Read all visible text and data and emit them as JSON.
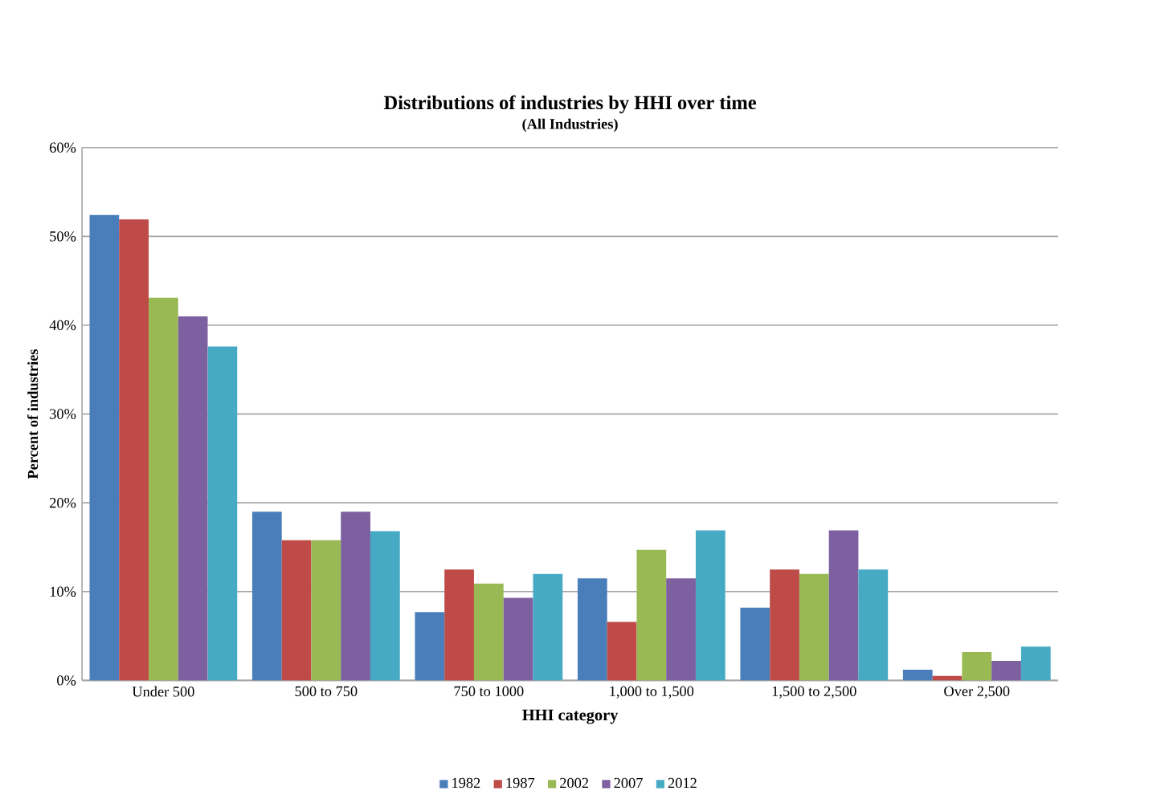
{
  "chart_data": {
    "type": "bar",
    "title": "Distributions of industries by HHI over time",
    "subtitle": "(All Industries)",
    "xlabel": "HHI category",
    "ylabel": "Percent of industries",
    "categories": [
      "Under 500",
      "500 to 750",
      "750 to 1000",
      "1,000 to 1,500",
      "1,500 to 2,500",
      "Over 2,500"
    ],
    "series": [
      {
        "name": "1982",
        "color": "#4a7ebb",
        "values": [
          52.4,
          19.0,
          7.7,
          11.5,
          8.2,
          1.2
        ]
      },
      {
        "name": "1987",
        "color": "#be4b48",
        "values": [
          51.9,
          15.8,
          12.5,
          6.6,
          12.5,
          0.5
        ]
      },
      {
        "name": "2002",
        "color": "#98b954",
        "values": [
          43.1,
          15.8,
          10.9,
          14.7,
          12.0,
          3.2
        ]
      },
      {
        "name": "2007",
        "color": "#7d60a0",
        "values": [
          41.0,
          19.0,
          9.3,
          11.5,
          16.9,
          2.2
        ]
      },
      {
        "name": "2012",
        "color": "#46aac5",
        "values": [
          37.6,
          16.8,
          12.0,
          16.9,
          12.5,
          3.8
        ]
      }
    ],
    "ylim": [
      0,
      60
    ],
    "yticks": [
      {
        "value": 0,
        "label": "0%"
      },
      {
        "value": 10,
        "label": "10%"
      },
      {
        "value": 20,
        "label": "20%"
      },
      {
        "value": 30,
        "label": "30%"
      },
      {
        "value": 40,
        "label": "40%"
      },
      {
        "value": 50,
        "label": "50%"
      },
      {
        "value": 60,
        "label": "60%"
      }
    ],
    "grid": "y",
    "legend": "bottom"
  }
}
